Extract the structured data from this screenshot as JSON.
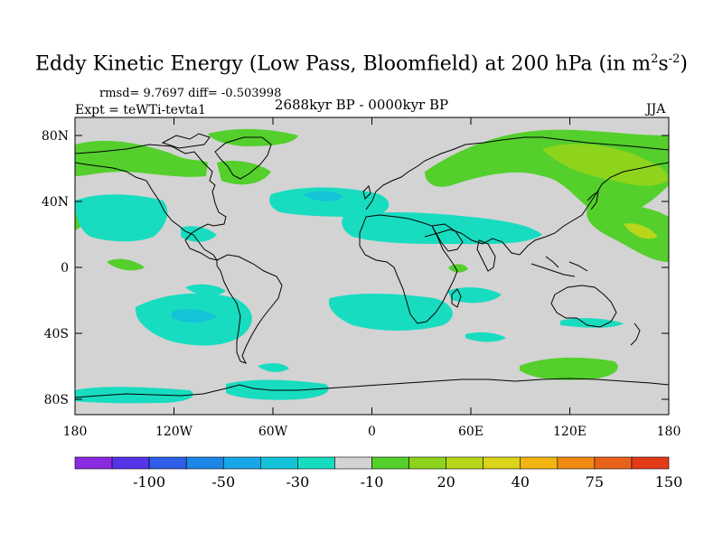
{
  "header": {
    "title_main": "Eddy Kinetic Energy (Low Pass, Bloomfield) at 200 hPa (in m",
    "title_sup1": "2",
    "title_mid": "s",
    "title_sup2": "-2",
    "title_end": ")",
    "stats": "rmsd= 9.7697 diff= -0.503998",
    "expt": "Expt = teWTi-tevta1",
    "period": "2688kyr BP - 0000kyr BP",
    "season": "JJA"
  },
  "axes": {
    "y_ticks": [
      "80N",
      "40N",
      "0",
      "40S",
      "80S"
    ],
    "x_ticks": [
      "180",
      "120W",
      "60W",
      "0",
      "60E",
      "120E",
      "180"
    ]
  },
  "colorbar": {
    "colors": [
      "#8a2be2",
      "#5533e8",
      "#2f5fe6",
      "#1c86e6",
      "#19a6e6",
      "#15c3d9",
      "#18dcc0",
      "#d3d3d3",
      "#54cf2c",
      "#8fd41c",
      "#b8d61a",
      "#dcd418",
      "#f2b514",
      "#f08a13",
      "#e9621b",
      "#e33a1a"
    ],
    "labels": [
      "-100",
      "-50",
      "-30",
      "-10",
      "20",
      "40",
      "75",
      "150"
    ]
  },
  "colors": {
    "neutral": "#d3d3d3",
    "negative_light": "#18dcc0",
    "negative_mid": "#15c3d9",
    "positive_light": "#54cf2c",
    "positive_mid": "#8fd41c",
    "positive_high": "#b8d61a"
  }
}
